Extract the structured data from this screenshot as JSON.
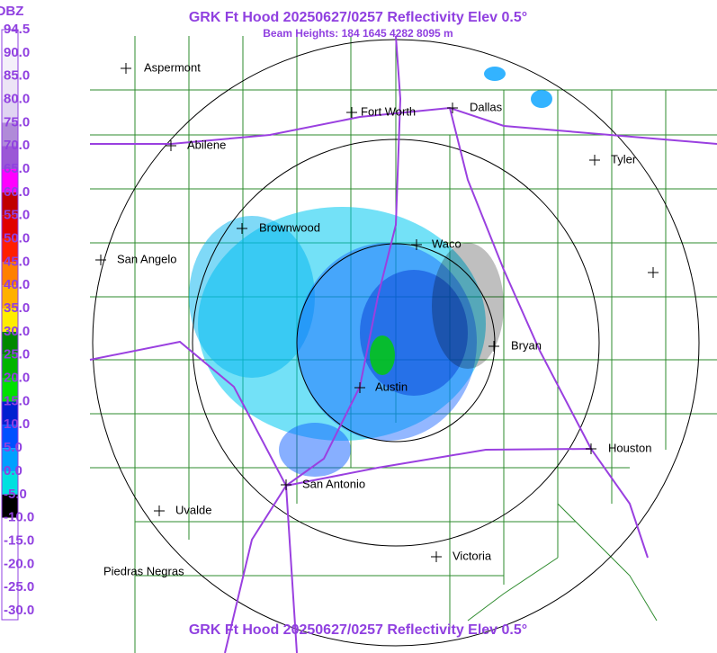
{
  "header": {
    "title": "GRK Ft Hood 20250627/0257 Reflectivity Elev 0.5°",
    "subtitle": "Beam Heights: 184 1645 4282 8095 m"
  },
  "legend": {
    "title": "DBZ",
    "labels": [
      "94.5",
      "90.0",
      "85.0",
      "80.0",
      "75.0",
      "70.0",
      "65.0",
      "60.0",
      "55.0",
      "50.0",
      "45.0",
      "40.0",
      "35.0",
      "30.0",
      "25.0",
      "20.0",
      "15.0",
      "10.0",
      "5.0",
      "0.0",
      "-5.0",
      "-10.0",
      "-15.0",
      "-20.0",
      "-25.0",
      "-30.0"
    ],
    "colors": [
      "#ffffff",
      "#f4f0fa",
      "#ece4f6",
      "#e0d4f2",
      "#b08ad8",
      "#9b57d6",
      "#ff00ff",
      "#c00000",
      "#e00000",
      "#ff2000",
      "#ff8000",
      "#ffb000",
      "#ffee00",
      "#008800",
      "#00b400",
      "#00e000",
      "#0020d0",
      "#0050ff",
      "#00a0ff",
      "#00e0e0",
      "#000000",
      "#ffffff",
      "#ffffff",
      "#ffffff",
      "#ffffff"
    ]
  },
  "cities": [
    "Aspermont",
    "Fort Worth",
    "Dallas",
    "Abilene",
    "Tyler",
    "Brownwood",
    "Waco",
    "San Angelo",
    "Bryan",
    "Austin",
    "Houston",
    "San Antonio",
    "Uvalde",
    "Victoria",
    "Piedras Negras"
  ],
  "footer": {
    "title": "GRK Ft Hood 20250627/0257 Reflectivity Elev 0.5°"
  }
}
